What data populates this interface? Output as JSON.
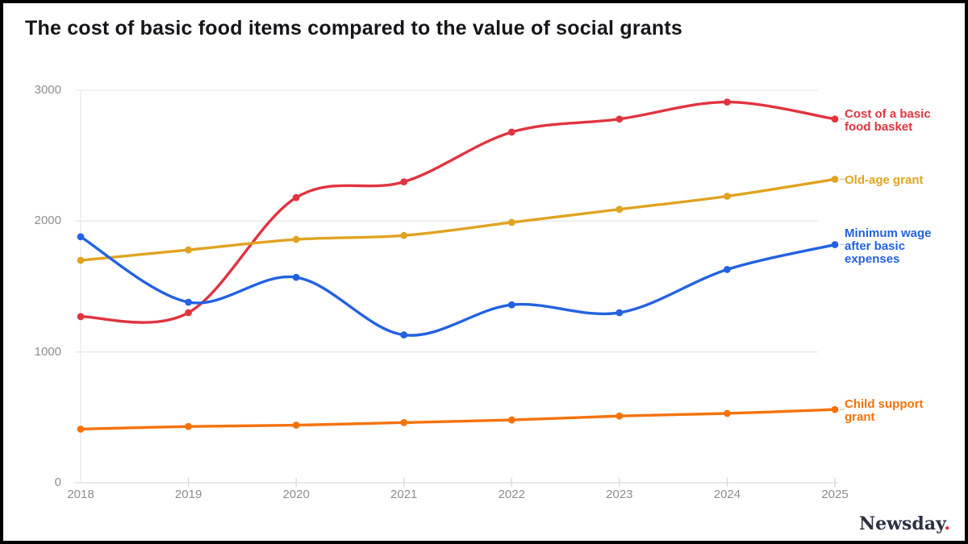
{
  "title": "The cost of basic food items compared to the value of social grants",
  "logo": {
    "text": "Newsday",
    "dot": "."
  },
  "axes": {
    "y_tick_labels": [
      "0",
      "1000",
      "2000",
      "3000"
    ],
    "x_tick_labels": [
      "2018",
      "2019",
      "2020",
      "2021",
      "2022",
      "2023",
      "2024",
      "2025"
    ]
  },
  "colors": {
    "grid": "#e9e9e9",
    "axis_line": "#dcdcdc",
    "tick": "#d8d8d8",
    "tick_text": "#8e8e8e",
    "connector": "#c9c9c9",
    "title_text": "#14161a",
    "logo_text": "#2d3142",
    "logo_dot": "#e8232a"
  },
  "chart_data": {
    "type": "line",
    "x": [
      2018,
      2019,
      2020,
      2021,
      2022,
      2023,
      2024,
      2025
    ],
    "xlabel": "",
    "ylabel": "",
    "ylim": [
      0,
      3000
    ],
    "yticks": [
      0,
      1000,
      2000,
      3000
    ],
    "grid": true,
    "legend_position": "right",
    "smooth": true,
    "series": [
      {
        "name": "Cost of a basic food basket",
        "label_lines": [
          "Cost of a basic",
          "food basket"
        ],
        "color": "#e0343f",
        "values": [
          1270,
          1300,
          2180,
          2300,
          2680,
          2780,
          2910,
          2780
        ]
      },
      {
        "name": "Old-age grant",
        "label_lines": [
          "Old-age grant"
        ],
        "color": "#e0a321",
        "values": [
          1700,
          1780,
          1860,
          1890,
          1990,
          2090,
          2190,
          2320
        ]
      },
      {
        "name": "Minimum wage after basic expenses",
        "label_lines": [
          "Minimum wage",
          "after basic",
          "expenses"
        ],
        "color": "#2362e1",
        "values": [
          1880,
          1380,
          1570,
          1130,
          1360,
          1300,
          1630,
          1820
        ]
      },
      {
        "name": "Child support grant",
        "label_lines": [
          "Child support",
          "grant"
        ],
        "color": "#f5720b",
        "values": [
          410,
          430,
          440,
          460,
          480,
          510,
          530,
          560
        ]
      }
    ]
  }
}
